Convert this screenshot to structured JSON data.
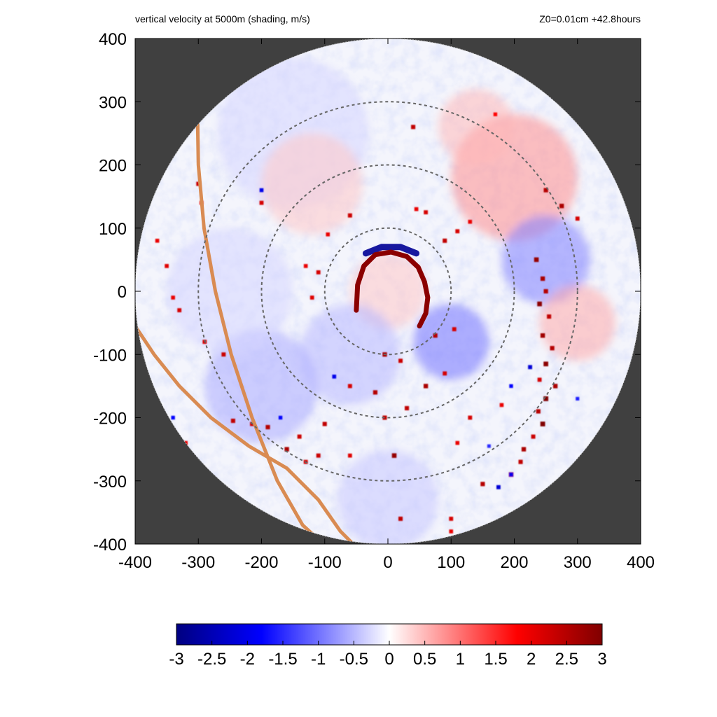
{
  "header": {
    "title": "vertical velocity at 5000m (shading, m/s)",
    "annotation": "Z0=0.01cm  +42.8hours"
  },
  "chart_data": {
    "type": "heatmap",
    "title": "vertical velocity at 5000m (shading, m/s)",
    "annotation": "Z0=0.01cm  +42.8hours",
    "xlabel": "",
    "ylabel": "",
    "xlim": [
      -400,
      400
    ],
    "ylim": [
      -400,
      400
    ],
    "x_ticks": [
      -400,
      -300,
      -200,
      -100,
      0,
      100,
      200,
      300,
      400
    ],
    "y_ticks": [
      -400,
      -300,
      -200,
      -100,
      0,
      100,
      200,
      300,
      400
    ],
    "x_tick_labels": [
      "-400",
      "-300",
      "-200",
      "-100",
      "0",
      "100",
      "200",
      "300",
      "400"
    ],
    "y_tick_labels": [
      "400",
      "300",
      "200",
      "100",
      "0",
      "-100",
      "-200",
      "-300",
      "-400"
    ],
    "domain_radius": 400,
    "outside_domain_color": "#404040",
    "range_rings": [
      100,
      200,
      300
    ],
    "ring_style": "dashed gray",
    "colorbar": {
      "min": -3,
      "max": 3,
      "ticks": [
        "-3",
        "-2.5",
        "-2",
        "-1.5",
        "-1",
        "-0.5",
        "0",
        "0.5",
        "1",
        "1.5",
        "2",
        "2.5",
        "3"
      ],
      "colors": [
        "#000080",
        "#0000ff",
        "#ffffff",
        "#ff0000",
        "#800000"
      ]
    },
    "track_lines": [
      {
        "color": "#d98b52",
        "points": [
          [
            -301,
            264
          ],
          [
            -300,
            200
          ],
          [
            -291,
            100
          ],
          [
            -273,
            0
          ],
          [
            -248,
            -100
          ],
          [
            -215,
            -200
          ],
          [
            -175,
            -300
          ],
          [
            -135,
            -370
          ],
          [
            -102,
            -400
          ]
        ]
      },
      {
        "color": "#d98b52",
        "points": [
          [
            -400,
            -55
          ],
          [
            -370,
            -100
          ],
          [
            -330,
            -150
          ],
          [
            -280,
            -200
          ],
          [
            -220,
            -245
          ],
          [
            -160,
            -280
          ],
          [
            -110,
            -330
          ],
          [
            -75,
            -380
          ],
          [
            -55,
            -400
          ]
        ]
      }
    ],
    "updraft_band": [
      [
        -50,
        -30
      ],
      [
        -48,
        10
      ],
      [
        -38,
        40
      ],
      [
        -20,
        58
      ],
      [
        5,
        62
      ],
      [
        30,
        55
      ],
      [
        48,
        38
      ],
      [
        58,
        15
      ],
      [
        63,
        -10
      ],
      [
        60,
        -35
      ],
      [
        50,
        -55
      ]
    ],
    "downdraft_band": [
      [
        -35,
        60
      ],
      [
        -10,
        70
      ],
      [
        20,
        70
      ],
      [
        45,
        60
      ]
    ],
    "convective_cells": [
      [
        235,
        50,
        2.8
      ],
      [
        245,
        20,
        2.6
      ],
      [
        250,
        0,
        2.5
      ],
      [
        240,
        -20,
        2.9
      ],
      [
        255,
        -40,
        2.4
      ],
      [
        245,
        -70,
        2.7
      ],
      [
        260,
        -90,
        2.5
      ],
      [
        250,
        -115,
        2.9
      ],
      [
        240,
        -140,
        2.2
      ],
      [
        265,
        -150,
        2.6
      ],
      [
        250,
        -170,
        3.0
      ],
      [
        238,
        -190,
        2.5
      ],
      [
        245,
        -210,
        3.0
      ],
      [
        230,
        -230,
        2.3
      ],
      [
        215,
        -250,
        2.6
      ],
      [
        195,
        -290,
        2.8
      ],
      [
        175,
        -310,
        -2.2
      ],
      [
        150,
        -305,
        2.5
      ],
      [
        210,
        -270,
        2.4
      ],
      [
        -20,
        -160,
        2.5
      ],
      [
        -60,
        -150,
        2.2
      ],
      [
        -100,
        -210,
        2.4
      ],
      [
        -140,
        -230,
        2.3
      ],
      [
        -160,
        -250,
        2.6
      ],
      [
        -190,
        -215,
        2.5
      ],
      [
        -215,
        -210,
        2.2
      ],
      [
        -245,
        -205,
        2.4
      ],
      [
        -130,
        -270,
        2.2
      ],
      [
        -110,
        -260,
        2.3
      ],
      [
        -60,
        -260,
        2.1
      ],
      [
        10,
        -260,
        2.8
      ],
      [
        30,
        -185,
        2.4
      ],
      [
        60,
        -150,
        2.6
      ],
      [
        90,
        -130,
        2.2
      ],
      [
        -5,
        -200,
        2.4
      ],
      [
        -5,
        -100,
        2.6
      ],
      [
        75,
        -70,
        2.5
      ],
      [
        105,
        -60,
        2.2
      ],
      [
        20,
        -110,
        2.3
      ],
      [
        -60,
        120,
        2.3
      ],
      [
        -95,
        90,
        2.0
      ],
      [
        -110,
        30,
        2.2
      ],
      [
        -120,
        -10,
        2.1
      ],
      [
        -130,
        40,
        2.0
      ],
      [
        90,
        80,
        2.4
      ],
      [
        110,
        95,
        2.2
      ],
      [
        130,
        110,
        2.0
      ],
      [
        60,
        125,
        2.2
      ],
      [
        45,
        130,
        2.0
      ],
      [
        40,
        260,
        2.4
      ],
      [
        170,
        280,
        1.8
      ],
      [
        250,
        160,
        2.5
      ],
      [
        275,
        135,
        2.6
      ],
      [
        300,
        115,
        2.2
      ],
      [
        -200,
        160,
        -2.0
      ],
      [
        -200,
        140,
        2.2
      ],
      [
        -300,
        170,
        2.3
      ],
      [
        -295,
        140,
        2.0
      ],
      [
        -365,
        80,
        2.0
      ],
      [
        -350,
        40,
        2.1
      ],
      [
        -340,
        -10,
        2.0
      ],
      [
        -330,
        -30,
        2.2
      ],
      [
        -290,
        -80,
        2.2
      ],
      [
        -260,
        -100,
        2.3
      ],
      [
        -320,
        -240,
        2.0
      ],
      [
        -340,
        -200,
        -1.8
      ],
      [
        100,
        -360,
        2.2
      ],
      [
        100,
        -380,
        2.0
      ],
      [
        20,
        -360,
        2.4
      ],
      [
        -85,
        -135,
        -2.0
      ],
      [
        -170,
        -200,
        -1.8
      ],
      [
        195,
        -150,
        -1.8
      ],
      [
        225,
        -120,
        -2.2
      ],
      [
        195,
        -290,
        -2.0
      ],
      [
        160,
        -245,
        -1.5
      ],
      [
        300,
        -170,
        -1.6
      ],
      [
        180,
        -180,
        2.0
      ],
      [
        130,
        -200,
        2.2
      ],
      [
        110,
        -240,
        2.0
      ]
    ],
    "diffuse_regions": [
      [
        200,
        180,
        100,
        0.8
      ],
      [
        250,
        50,
        70,
        -0.9
      ],
      [
        -200,
        -150,
        90,
        -0.6
      ],
      [
        100,
        -80,
        60,
        -1.0
      ],
      [
        0,
        0,
        60,
        0.4
      ],
      [
        -150,
        250,
        120,
        -0.3
      ],
      [
        300,
        -50,
        60,
        0.6
      ],
      [
        -60,
        -100,
        80,
        -0.5
      ],
      [
        140,
        260,
        60,
        0.5
      ],
      [
        -250,
        0,
        100,
        -0.3
      ],
      [
        0,
        -330,
        80,
        -0.4
      ],
      [
        -120,
        170,
        80,
        0.4
      ]
    ]
  }
}
